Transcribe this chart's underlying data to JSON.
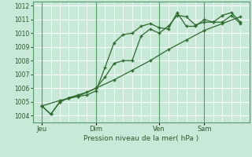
{
  "background_color": "#c8e8d8",
  "grid_color": "#b0d8c0",
  "grid_major_color": "#a0c8b0",
  "line_color": "#2d6a2d",
  "ylabel": "Pression niveau de la mer( hPa )",
  "ylim": [
    1003.5,
    1012.3
  ],
  "yticks": [
    1004,
    1005,
    1006,
    1007,
    1008,
    1009,
    1010,
    1011,
    1012
  ],
  "xlim": [
    0,
    12
  ],
  "day_labels": [
    "Jeu",
    "Dim",
    "Ven",
    "Sam"
  ],
  "day_positions": [
    0.5,
    3.5,
    7.0,
    9.5
  ],
  "day_vlines": [
    0.5,
    3.5,
    7.0,
    9.5
  ],
  "series1_x": [
    0.5,
    1.0,
    1.5,
    2.0,
    2.5,
    3.0,
    3.5,
    4.0,
    4.5,
    5.0,
    5.5,
    6.0,
    6.5,
    7.0,
    7.5,
    8.0,
    8.5,
    9.0,
    9.5,
    10.0,
    10.5,
    11.0,
    11.5
  ],
  "series1_y": [
    1004.7,
    1004.1,
    1005.0,
    1005.3,
    1005.4,
    1005.5,
    1005.8,
    1007.5,
    1009.3,
    1009.9,
    1010.0,
    1010.5,
    1010.7,
    1010.4,
    1010.3,
    1011.5,
    1010.5,
    1010.5,
    1011.0,
    1010.8,
    1011.3,
    1011.5,
    1010.8
  ],
  "series2_x": [
    0.5,
    1.0,
    1.5,
    2.0,
    2.5,
    3.0,
    3.5,
    4.0,
    4.5,
    5.0,
    5.5,
    6.0,
    6.5,
    7.0,
    7.5,
    8.0,
    8.5,
    9.0,
    9.5,
    10.0,
    10.5,
    11.0,
    11.5
  ],
  "series2_y": [
    1004.7,
    1004.1,
    1005.0,
    1005.3,
    1005.5,
    1005.7,
    1006.0,
    1006.8,
    1007.8,
    1008.0,
    1008.0,
    1009.8,
    1010.3,
    1010.0,
    1010.5,
    1011.3,
    1011.2,
    1010.6,
    1010.8,
    1010.8,
    1010.8,
    1011.3,
    1010.7
  ],
  "series3_x": [
    0.5,
    1.5,
    2.5,
    3.5,
    4.5,
    5.5,
    6.5,
    7.5,
    8.5,
    9.5,
    10.5,
    11.5
  ],
  "series3_y": [
    1004.7,
    1005.1,
    1005.4,
    1006.0,
    1006.6,
    1007.3,
    1008.0,
    1008.8,
    1009.5,
    1010.2,
    1010.7,
    1011.2
  ]
}
